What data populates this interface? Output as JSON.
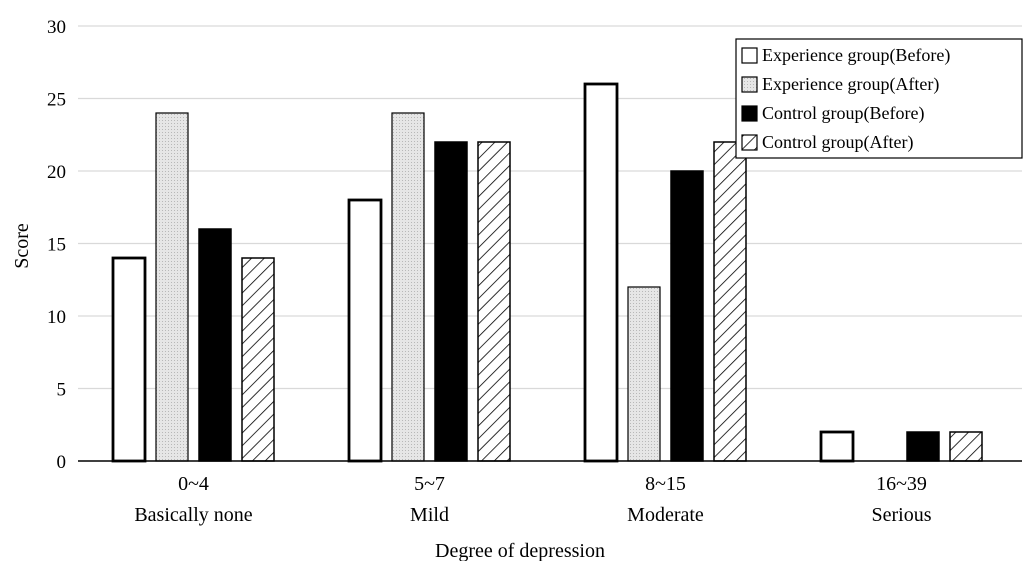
{
  "chart_data": {
    "type": "bar",
    "xlabel": "Degree of depression",
    "ylabel": "Score",
    "ylim": [
      0,
      30
    ],
    "yticks": [
      0,
      5,
      10,
      15,
      20,
      25,
      30
    ],
    "grid": true,
    "legend_position": "top-right",
    "categories": [
      {
        "range": "0~4",
        "label": "Basically none"
      },
      {
        "range": "5~7",
        "label": "Mild"
      },
      {
        "range": "8~15",
        "label": "Moderate"
      },
      {
        "range": "16~39",
        "label": "Serious"
      }
    ],
    "series": [
      {
        "name": "Experience group(Before)",
        "values": [
          14,
          18,
          26,
          2
        ],
        "style": "white"
      },
      {
        "name": "Experience group(After)",
        "values": [
          24,
          24,
          12,
          0
        ],
        "style": "dotted-gray"
      },
      {
        "name": "Control group(Before)",
        "values": [
          16,
          22,
          20,
          2
        ],
        "style": "black"
      },
      {
        "name": "Control group(After)",
        "values": [
          14,
          22,
          22,
          2
        ],
        "style": "hatched"
      }
    ],
    "colors": {
      "axis": "#000000",
      "grid": "#d9d9d9",
      "gray_fill": "#e3e3e3"
    }
  }
}
